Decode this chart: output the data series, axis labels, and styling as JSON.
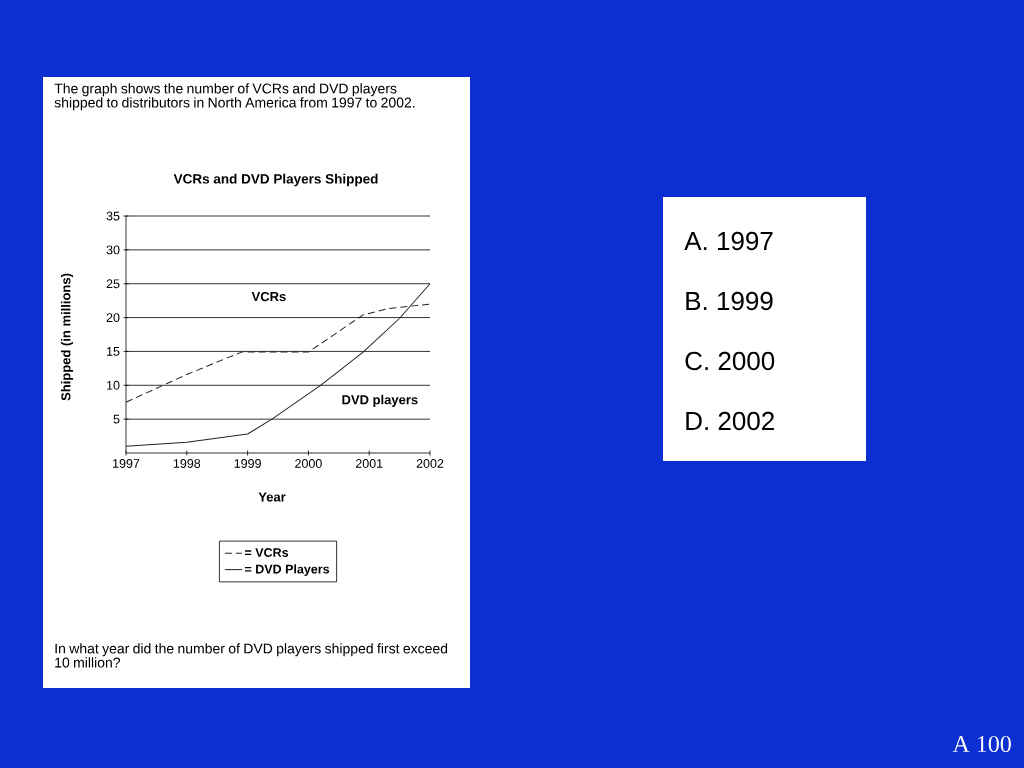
{
  "chart_data": {
    "type": "line",
    "title": "VCRs and DVD Players Shipped",
    "xlabel": "Year",
    "ylabel": "Shipped (in millions)",
    "x": [
      1997,
      1998,
      1998.9,
      2000,
      2000.9,
      2001.3,
      2002
    ],
    "series": [
      {
        "name": "= VCRs",
        "color": "#222222",
        "line_style": "dashed",
        "values": [
          7.5,
          11.6,
          14.9,
          14.9,
          20.4,
          21.3,
          22
        ]
      },
      {
        "name": "= DVD Players",
        "color": "#222222",
        "line_style": "solid",
        "x": [
          1997,
          1998,
          1999,
          1999.4,
          2000.2,
          2000.9,
          2001.5,
          2002
        ],
        "values": [
          1,
          1.6,
          2.8,
          5,
          10,
          14.9,
          19.9,
          25
        ]
      }
    ],
    "xlim": [
      1997,
      2002
    ],
    "ylim": [
      0,
      35
    ],
    "xticks": [
      1997,
      1998,
      1999,
      2000,
      2001,
      2002
    ],
    "yticks": [
      5,
      10,
      15,
      20,
      25,
      30,
      35
    ],
    "grid": "y",
    "legend": "bottom",
    "annotations": [
      "The graph shows the number of VCRs and DVD players shipped to distributors in North America from 1997 to 2002.",
      "In what year did the number of DVD players shipped first exceed 10 million?",
      "A. 1997",
      "B. 1999",
      "C. 2000",
      "D. 2002",
      "A 100",
      "VCRs",
      "DVD players"
    ]
  }
}
